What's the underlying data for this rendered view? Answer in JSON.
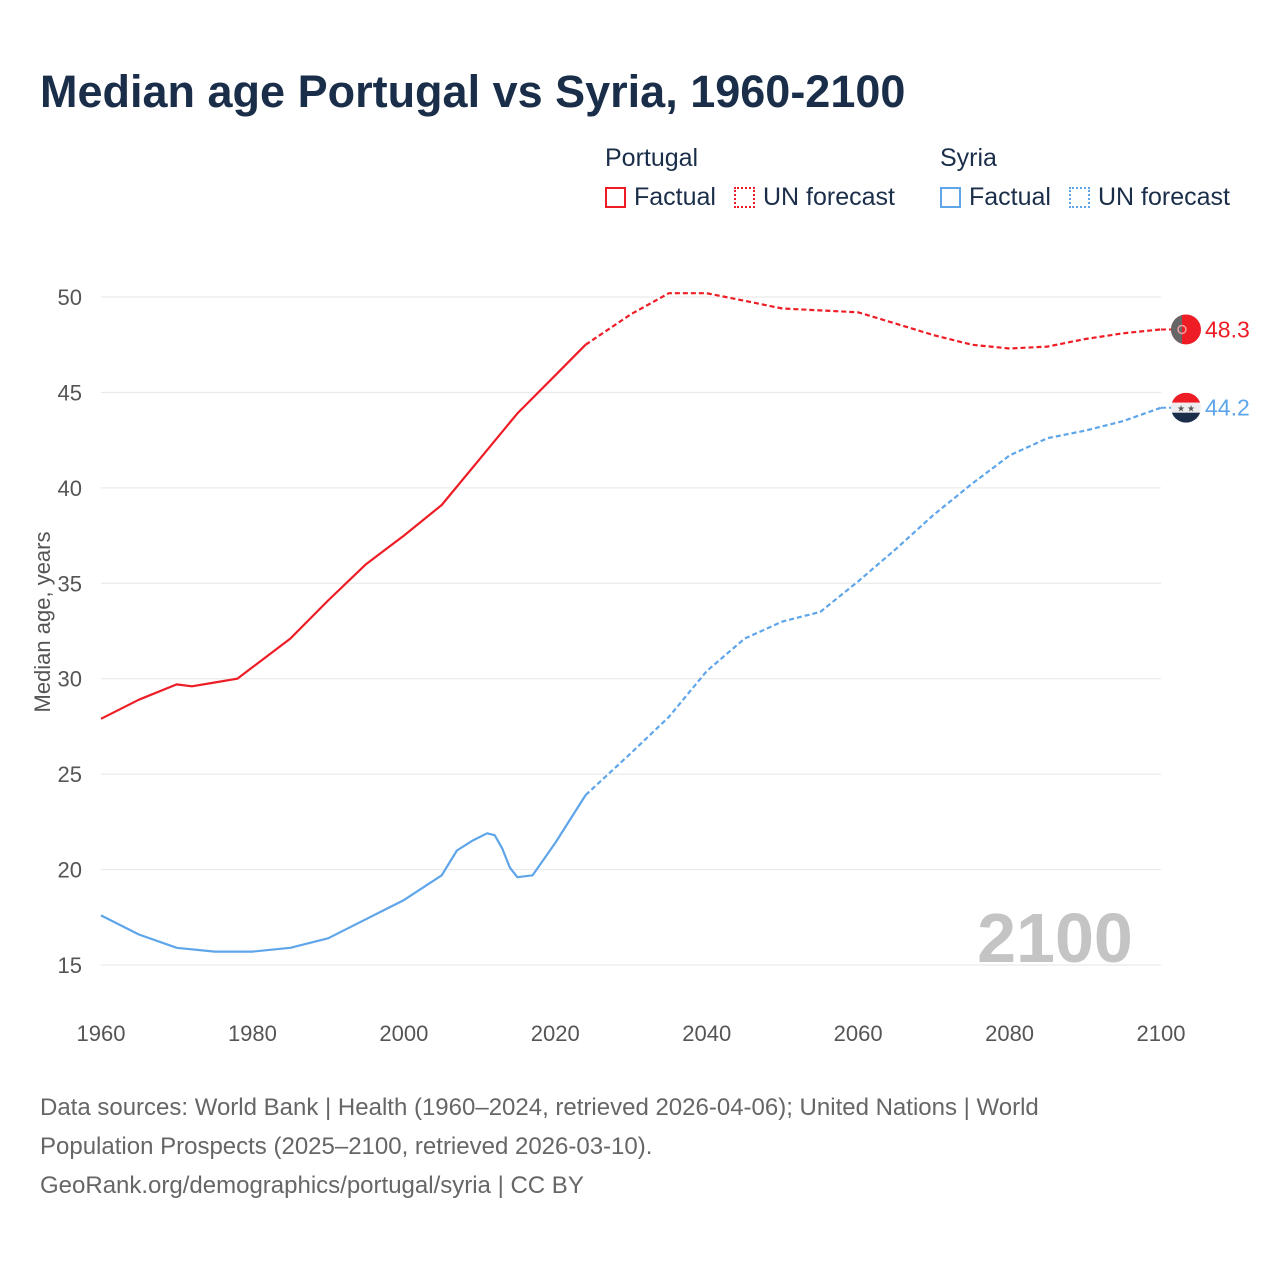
{
  "title": "Median age Portugal vs Syria, 1960-2100",
  "legend": {
    "groups": [
      {
        "name": "Portugal",
        "color": "#ee1c25",
        "factual_label": "Factual",
        "forecast_label": "UN forecast"
      },
      {
        "name": "Syria",
        "color": "#5ea5ea",
        "factual_label": "Factual",
        "forecast_label": "UN forecast"
      }
    ]
  },
  "year_watermark": "2100",
  "footer": {
    "line1": "Data sources: World Bank | Health (1960–2024, retrieved 2026-04-06); United Nations | World",
    "line2": "Population Prospects (2025–2100, retrieved 2026-03-10).",
    "line3": "GeoRank.org/demographics/portugal/syria | CC BY"
  },
  "chart_data": {
    "type": "line",
    "title": "Median age Portugal vs Syria, 1960-2100",
    "xlabel": "",
    "ylabel": "Median age, years",
    "xlim": [
      1960,
      2100
    ],
    "ylim": [
      15,
      50
    ],
    "xticks": [
      1960,
      1980,
      2000,
      2020,
      2040,
      2060,
      2080,
      2100
    ],
    "yticks": [
      15,
      20,
      25,
      30,
      35,
      40,
      45,
      50
    ],
    "grid": true,
    "legend_position": "top-right",
    "forecast_start": 2024,
    "series": [
      {
        "name": "Portugal",
        "color": "#ee1c25",
        "end_label": "48.3",
        "x": [
          1960,
          1965,
          1970,
          1972,
          1975,
          1978,
          1980,
          1985,
          1990,
          1995,
          2000,
          2005,
          2010,
          2015,
          2020,
          2024,
          2030,
          2035,
          2040,
          2045,
          2050,
          2055,
          2060,
          2065,
          2070,
          2075,
          2080,
          2085,
          2090,
          2095,
          2100
        ],
        "y": [
          27.9,
          28.9,
          29.7,
          29.6,
          29.8,
          30.0,
          30.6,
          32.1,
          34.1,
          36.0,
          37.5,
          39.1,
          41.5,
          43.9,
          45.9,
          47.5,
          49.1,
          50.2,
          50.2,
          49.8,
          49.4,
          49.3,
          49.2,
          48.6,
          48.0,
          47.5,
          47.3,
          47.4,
          47.8,
          48.1,
          48.3
        ]
      },
      {
        "name": "Syria",
        "color": "#5ea5ea",
        "end_label": "44.2",
        "x": [
          1960,
          1965,
          1970,
          1975,
          1980,
          1985,
          1990,
          1995,
          2000,
          2005,
          2007,
          2009,
          2011,
          2012,
          2013,
          2014,
          2015,
          2017,
          2020,
          2024,
          2030,
          2035,
          2040,
          2045,
          2050,
          2055,
          2060,
          2065,
          2070,
          2075,
          2080,
          2085,
          2090,
          2095,
          2100
        ],
        "y": [
          17.6,
          16.6,
          15.9,
          15.7,
          15.7,
          15.9,
          16.4,
          17.4,
          18.4,
          19.7,
          21.0,
          21.5,
          21.9,
          21.8,
          21.1,
          20.1,
          19.6,
          19.7,
          21.4,
          23.9,
          26.1,
          28.0,
          30.4,
          32.1,
          33.0,
          33.5,
          35.1,
          36.8,
          38.6,
          40.2,
          41.7,
          42.6,
          43.0,
          43.5,
          44.2
        ]
      }
    ]
  }
}
